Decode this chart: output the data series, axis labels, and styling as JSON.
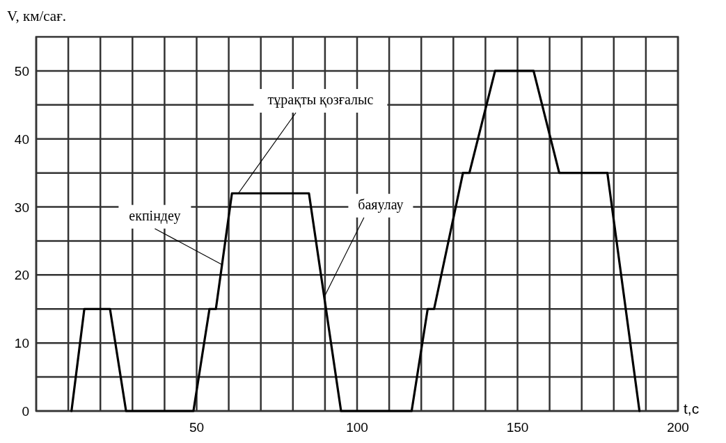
{
  "chart_data": {
    "type": "line",
    "xlabel": "t,с",
    "ylabel": "V, км/сағ.",
    "x": [
      11,
      15,
      23,
      28,
      49,
      54,
      56,
      61,
      85,
      95,
      117,
      122,
      124,
      133,
      135,
      143,
      155,
      163,
      178,
      188
    ],
    "series": [
      {
        "color": "#000000",
        "values": [
          0,
          15,
          15,
          0,
          0,
          15,
          15,
          32,
          32,
          0,
          0,
          15,
          15,
          35,
          35,
          50,
          50,
          35,
          35,
          0
        ]
      }
    ],
    "xlim": [
      0,
      200
    ],
    "ylim": [
      0,
      55
    ],
    "xticks": [
      {
        "value": 0,
        "label": null
      },
      {
        "value": 10,
        "label": null
      },
      {
        "value": 20,
        "label": null
      },
      {
        "value": 30,
        "label": null
      },
      {
        "value": 40,
        "label": null
      },
      50,
      {
        "value": 60,
        "label": null
      },
      {
        "value": 70,
        "label": null
      },
      {
        "value": 80,
        "label": null
      },
      {
        "value": 90,
        "label": null
      },
      100,
      {
        "value": 110,
        "label": null
      },
      {
        "value": 120,
        "label": null
      },
      {
        "value": 130,
        "label": null
      },
      {
        "value": 140,
        "label": null
      },
      150,
      {
        "value": 160,
        "label": null
      },
      {
        "value": 170,
        "label": null
      },
      {
        "value": 180,
        "label": null
      },
      {
        "value": 190,
        "label": null
      },
      200
    ],
    "yticks": [
      0,
      {
        "value": 5,
        "label": null
      },
      10,
      {
        "value": 15,
        "label": null
      },
      20,
      {
        "value": 25,
        "label": null
      },
      30,
      {
        "value": 35,
        "label": null
      },
      40,
      {
        "value": 45,
        "label": null
      },
      50
    ],
    "grid": true,
    "marker": "none",
    "line_style": "solid",
    "annotations": [
      {
        "text": "екпіндеу",
        "x": 58,
        "y": 21.5
      },
      {
        "text": "тұрақты қозғалыс",
        "x": 63,
        "y": 32
      },
      {
        "text": "баяулау",
        "x": 90,
        "y": 17
      }
    ]
  }
}
